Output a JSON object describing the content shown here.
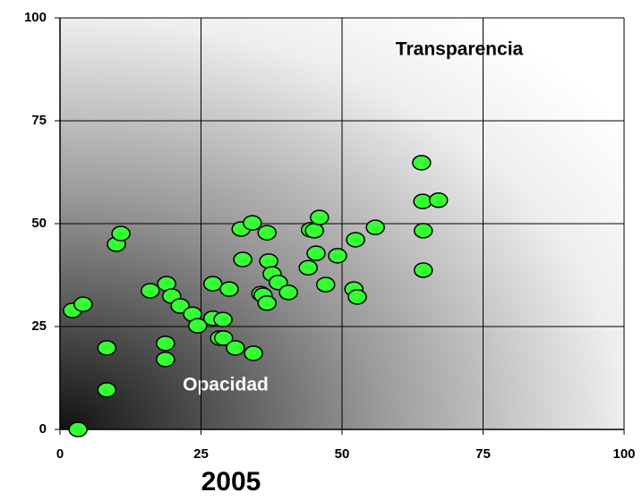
{
  "chart_data": {
    "type": "scatter",
    "title": "2005",
    "annotations": [
      "Transparencia",
      "Opacidad"
    ],
    "color": "#33ff33",
    "xlim": [
      0,
      100
    ],
    "ylim": [
      0,
      100
    ],
    "xticks": [
      0,
      25,
      50,
      75,
      100
    ],
    "yticks": [
      0,
      25,
      50,
      75,
      100
    ],
    "grid": true,
    "x": [
      3.2,
      2.2,
      4.1,
      8.3,
      8.3,
      10.0,
      10.8,
      16.0,
      18.9,
      18.7,
      18.7,
      19.8,
      21.3,
      23.5,
      24.4,
      27.1,
      27.1,
      28.9,
      28.3,
      29.0,
      30.0,
      31.1,
      32.1,
      32.4,
      34.1,
      34.3,
      35.6,
      36.0,
      36.7,
      36.7,
      37.0,
      37.6,
      38.7,
      40.5,
      44.0,
      44.4,
      45.1,
      45.4,
      46.0,
      47.1,
      49.2,
      52.1,
      52.7,
      52.4,
      55.9,
      64.1,
      64.3,
      67.1,
      64.4,
      64.4
    ],
    "values": [
      0,
      28.9,
      30.4,
      19.8,
      9.6,
      45.0,
      47.6,
      33.7,
      35.4,
      20.9,
      17.0,
      32.4,
      30.0,
      28.0,
      25.2,
      35.4,
      27.0,
      26.7,
      22.2,
      22.2,
      34.1,
      19.8,
      48.7,
      41.3,
      50.2,
      18.5,
      33.0,
      32.6,
      30.7,
      47.8,
      40.9,
      37.8,
      35.7,
      33.3,
      39.3,
      48.5,
      48.3,
      42.8,
      51.5,
      35.2,
      42.2,
      34.1,
      32.2,
      46.1,
      49.1,
      64.8,
      55.4,
      55.7,
      48.3,
      38.7
    ]
  }
}
